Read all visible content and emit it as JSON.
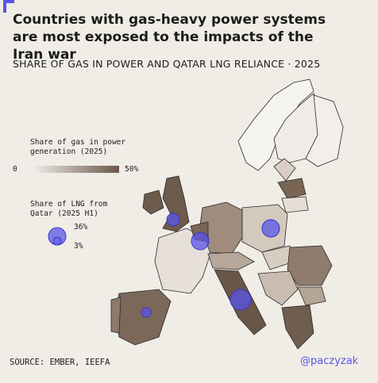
{
  "header": {
    "title": "Countries with gas-heavy power systems are most exposed to the impacts of the Iran war",
    "subtitle": "SHARE OF GAS IN POWER AND QATAR LNG RELIANCE · 2025"
  },
  "legend": {
    "gas": {
      "title": "Share of gas in power generation (2025)",
      "min": "0",
      "max": "50%"
    },
    "lng": {
      "title": "Share of LNG from Qatar (2025 H1)",
      "large": "36%",
      "small": "3%"
    }
  },
  "footer": {
    "source": "SOURCE: EMBER, IEEFA",
    "handle": "@paczyzak"
  }
}
